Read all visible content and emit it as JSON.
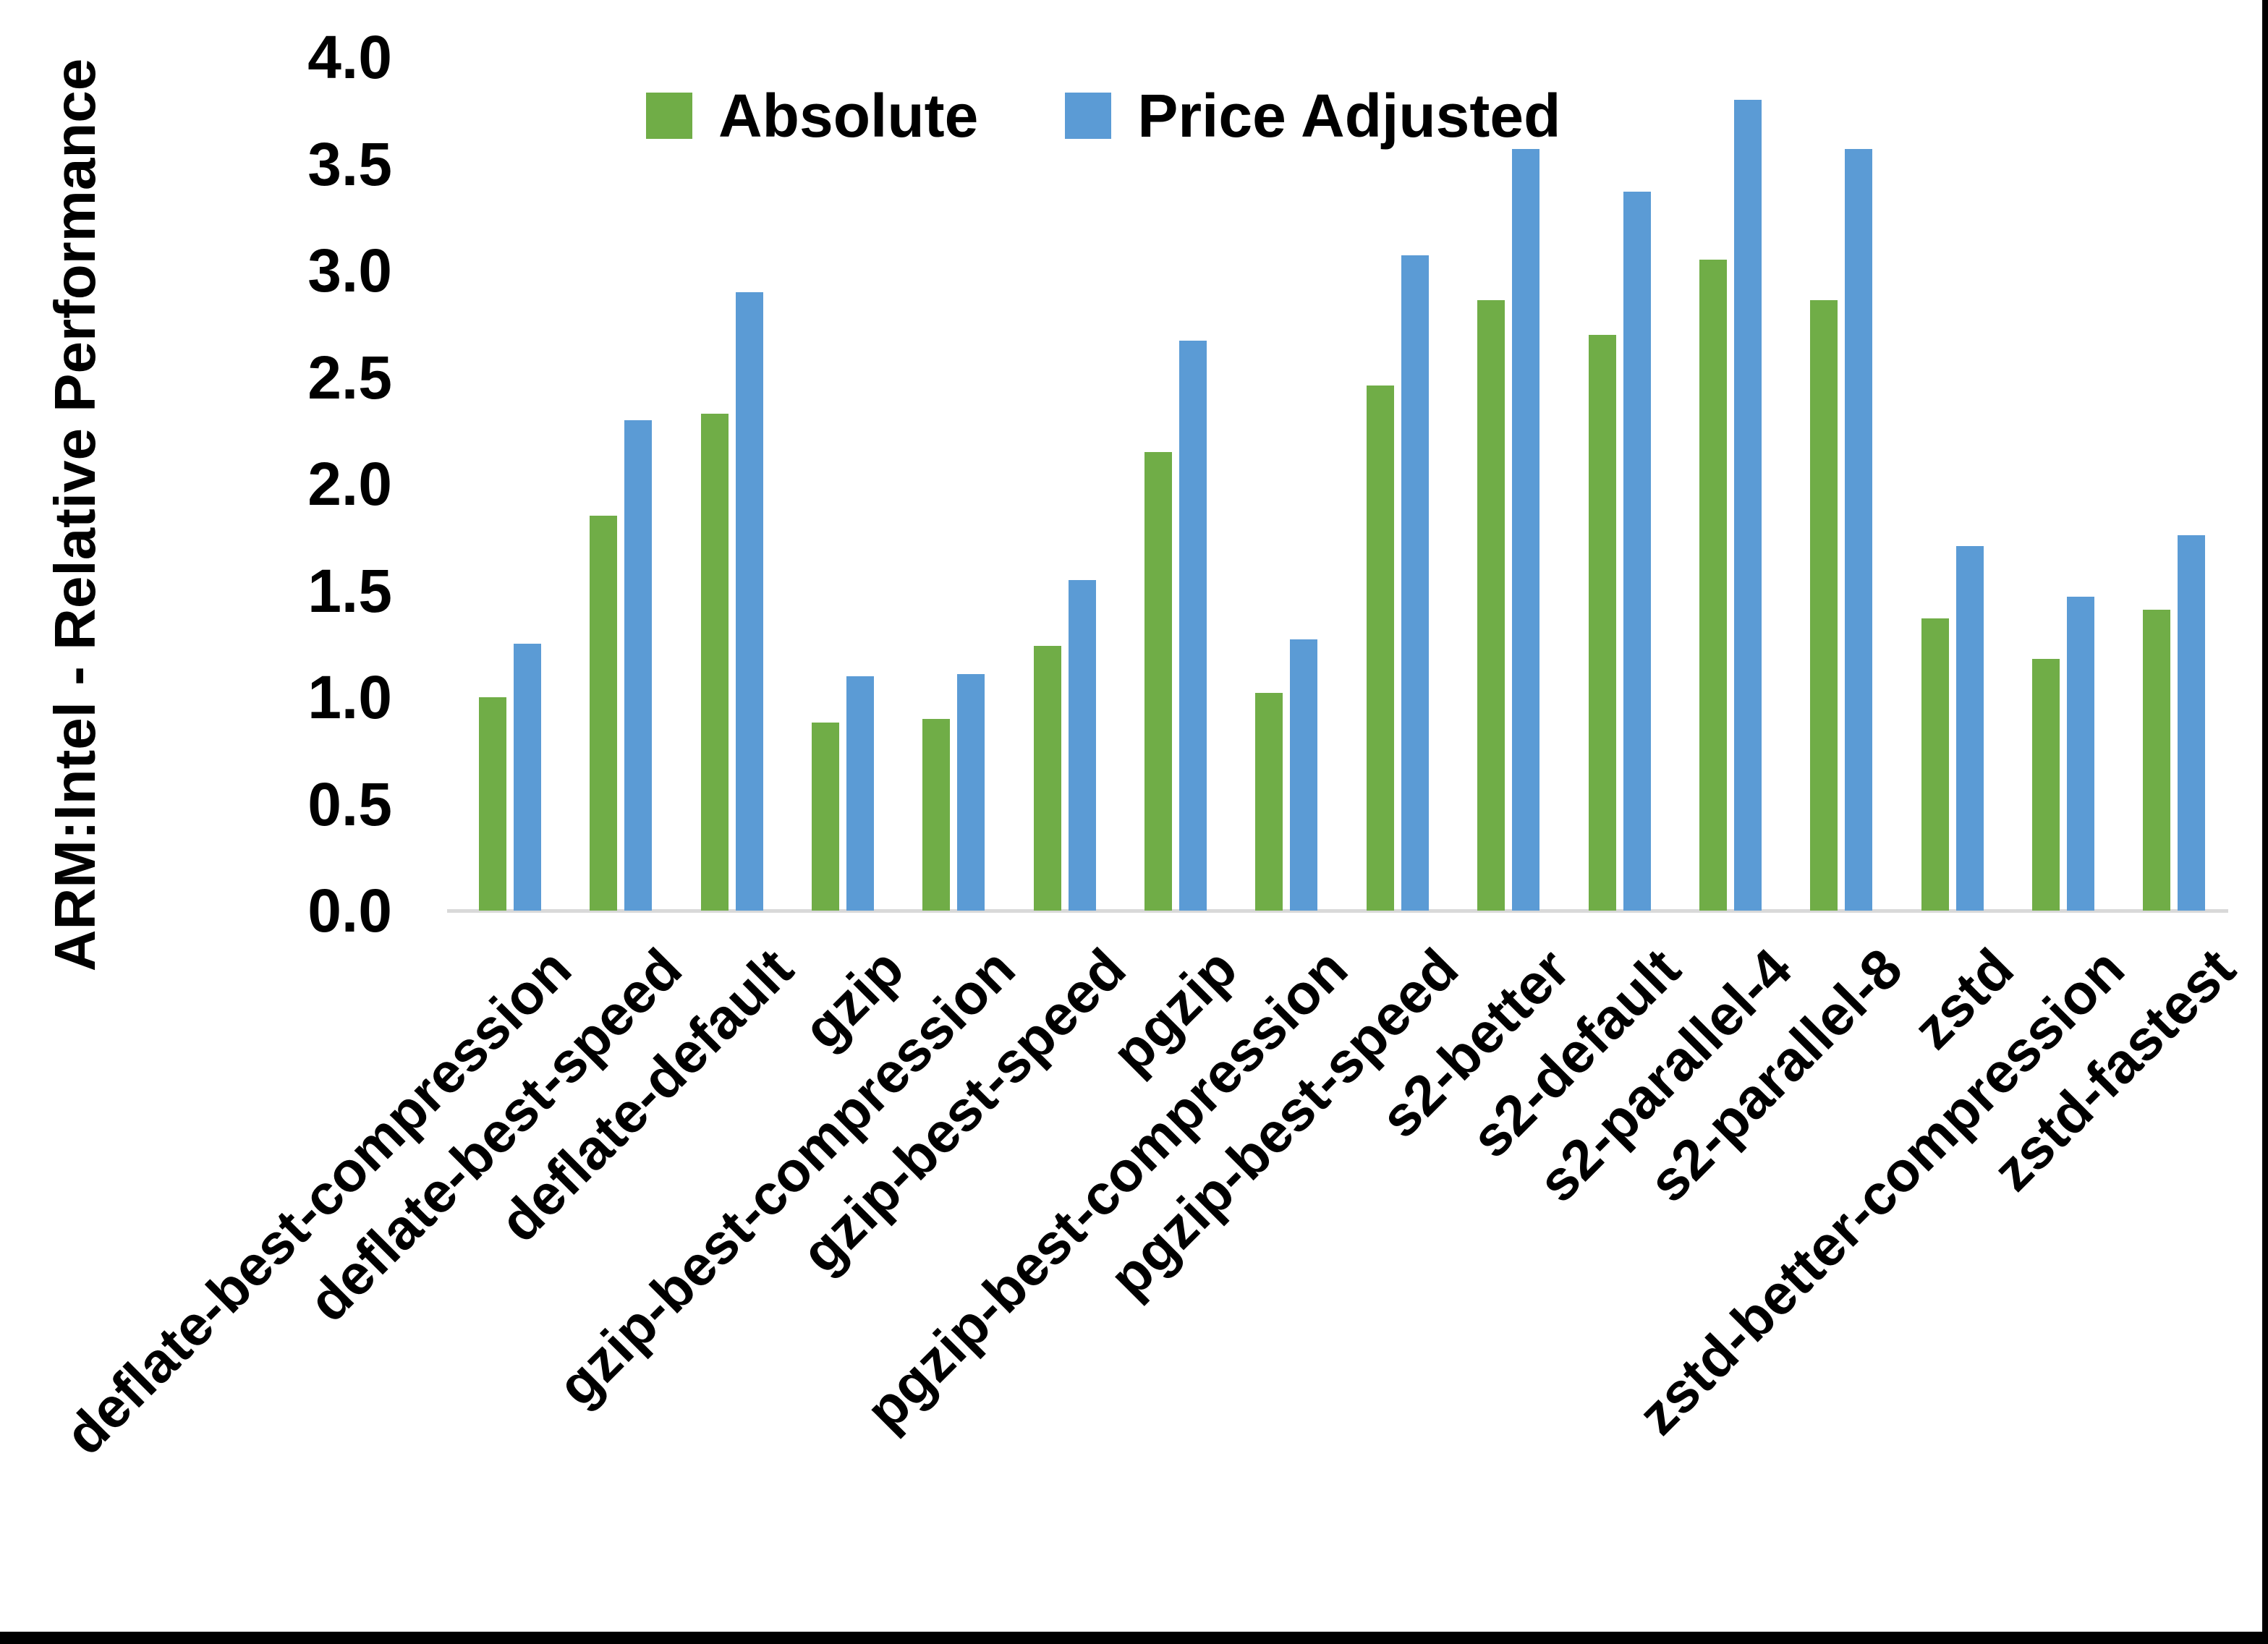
{
  "chart_data": {
    "type": "bar",
    "title": "",
    "ylabel": "ARM:Intel - Relative Performance",
    "xlabel": "",
    "ylim": [
      0.0,
      4.0
    ],
    "ytick_step": 0.5,
    "ytick_labels": [
      "0.0",
      "0.5",
      "1.0",
      "1.5",
      "2.0",
      "2.5",
      "3.0",
      "3.5",
      "4.0"
    ],
    "grid": false,
    "legend_position": "top",
    "categories": [
      "deflate-best-compression",
      "deflate-best-speed",
      "deflate-default",
      "gzip",
      "gzip-best-compression",
      "gzip-best-speed",
      "pgzip",
      "pgzip-best-compression",
      "pgzip-best-speed",
      "s2-better",
      "s2-default",
      "s2-parallel-4",
      "s2-parallel-8",
      "zstd",
      "zstd-better-compression",
      "zstd-fastest"
    ],
    "series": [
      {
        "name": "Absolute",
        "color": "#70AD47",
        "values": [
          1.0,
          1.85,
          2.33,
          0.88,
          0.9,
          1.24,
          2.15,
          1.02,
          2.46,
          2.86,
          2.7,
          3.05,
          2.86,
          1.37,
          1.18,
          1.41
        ]
      },
      {
        "name": "Price Adjusted",
        "color": "#5B9BD5",
        "values": [
          1.25,
          2.3,
          2.9,
          1.1,
          1.11,
          1.55,
          2.67,
          1.27,
          3.07,
          3.57,
          3.37,
          3.8,
          3.57,
          1.71,
          1.47,
          1.76
        ]
      }
    ],
    "axis_line_color": "#D9D9D9",
    "text_color": "#000000",
    "frame_border_color": "#000000"
  }
}
